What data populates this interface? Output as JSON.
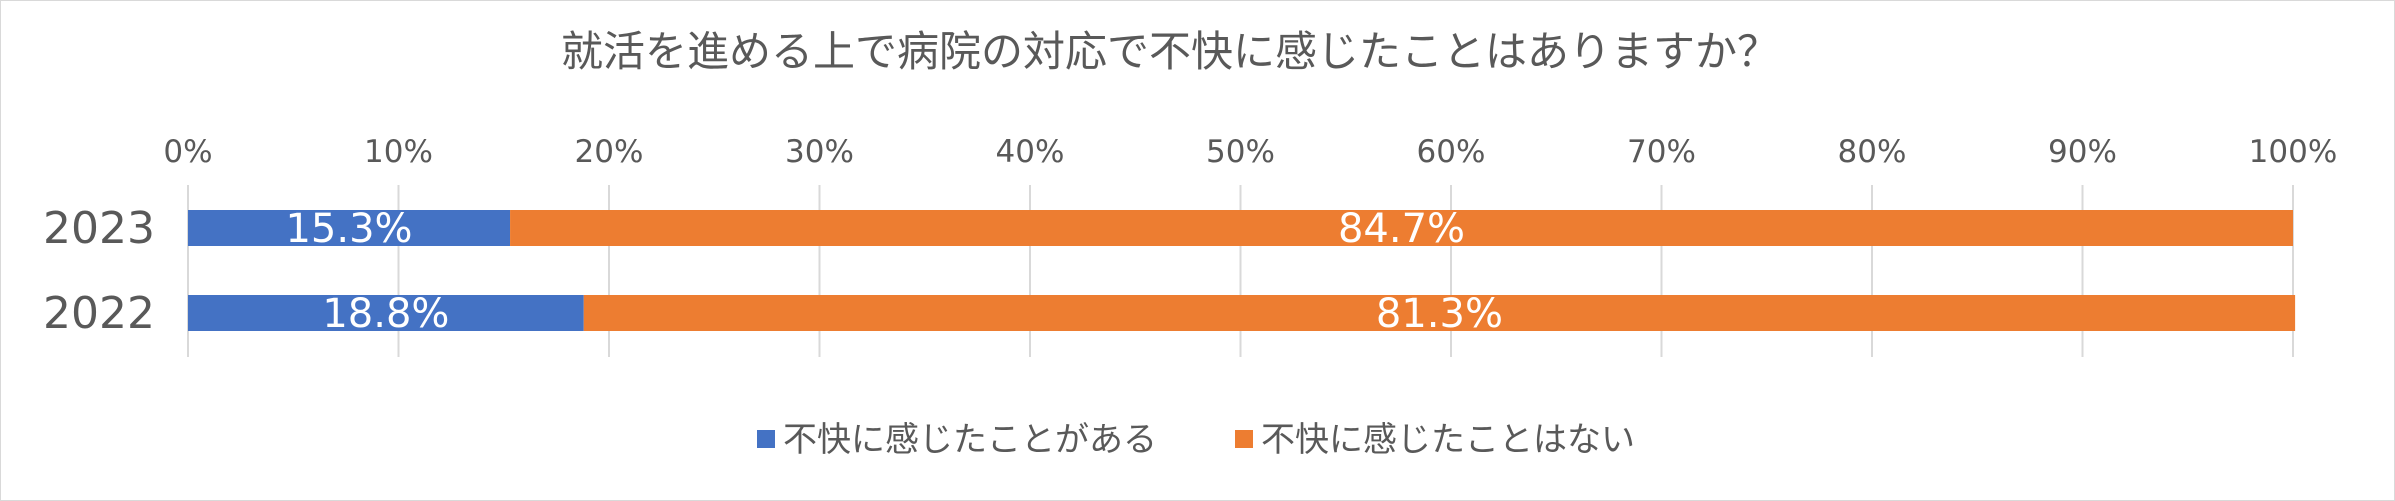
{
  "chart_data": {
    "type": "bar",
    "orientation": "horizontal",
    "stacked": "percent",
    "title": "就活を進める上で病院の対応で不快に感じたことはありますか？",
    "categories": [
      "2023",
      "2022"
    ],
    "series": [
      {
        "name": "不快に感じたことがある",
        "color": "#4472c4",
        "values": [
          15.3,
          18.8
        ],
        "labels": [
          "15.3%",
          "18.8%"
        ]
      },
      {
        "name": "不快に感じたことはない",
        "color": "#ed7d31",
        "values": [
          84.7,
          81.3
        ],
        "labels": [
          "84.7%",
          "81.3%"
        ]
      }
    ],
    "xlim": [
      0,
      100
    ],
    "x_ticks": [
      "0%",
      "10%",
      "20%",
      "30%",
      "40%",
      "50%",
      "60%",
      "70%",
      "80%",
      "90%",
      "100%"
    ],
    "grid": true,
    "legend": "bottom"
  }
}
